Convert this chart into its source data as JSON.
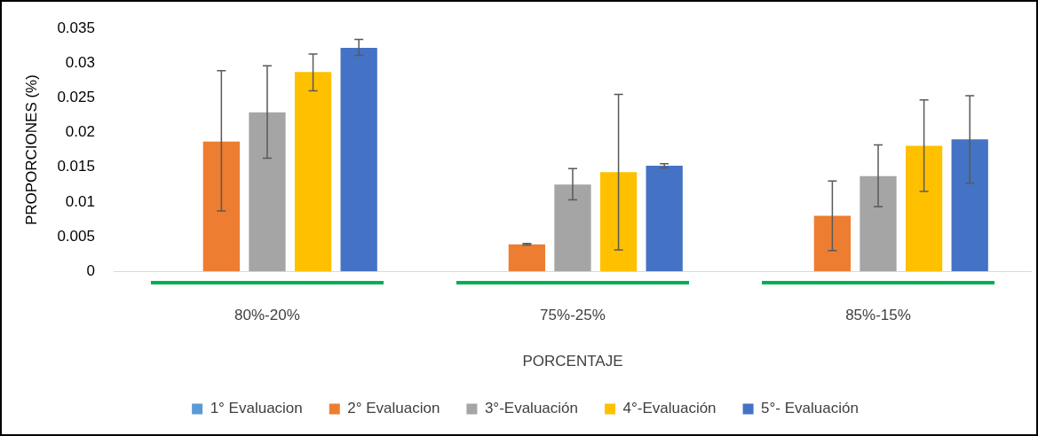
{
  "chart_data": {
    "type": "bar",
    "xlabel": "PORCENTAJE",
    "ylabel": "PROPORCIONES (%)",
    "categories": [
      "80%-20%",
      "75%-25%",
      "85%-15%"
    ],
    "ylim": [
      0,
      0.035
    ],
    "yticks": [
      0,
      0.005,
      0.01,
      0.015,
      0.02,
      0.025,
      0.03,
      0.035
    ],
    "grid": false,
    "legend": "bottom",
    "series": [
      {
        "name": "1° Evaluacion",
        "color": "#5b9bd5",
        "values": [
          0,
          0,
          0
        ]
      },
      {
        "name": "2° Evaluacion",
        "color": "#ed7d31",
        "values": [
          0.0187,
          0.0039,
          0.008
        ],
        "errors": [
          [
            0.0087,
            0.0289
          ],
          [
            0.0038,
            0.004
          ],
          [
            0.003,
            0.013
          ]
        ]
      },
      {
        "name": "3°-Evaluación",
        "color": "#a5a5a5",
        "values": [
          0.0229,
          0.0125,
          0.0137
        ],
        "errors": [
          [
            0.0163,
            0.0296
          ],
          [
            0.0103,
            0.0148
          ],
          [
            0.0093,
            0.0182
          ]
        ]
      },
      {
        "name": "4°-Evaluación",
        "color": "#ffc000",
        "values": [
          0.0287,
          0.0143,
          0.0181
        ],
        "errors": [
          [
            0.026,
            0.0313
          ],
          [
            0.0031,
            0.0255
          ],
          [
            0.0115,
            0.0247
          ]
        ]
      },
      {
        "name": "5°- Evaluación",
        "color": "#4472c4",
        "values": [
          0.0322,
          0.0152,
          0.019
        ],
        "errors": [
          [
            0.0311,
            0.0334
          ],
          [
            0.0149,
            0.0155
          ],
          [
            0.0127,
            0.0253
          ]
        ]
      }
    ]
  }
}
